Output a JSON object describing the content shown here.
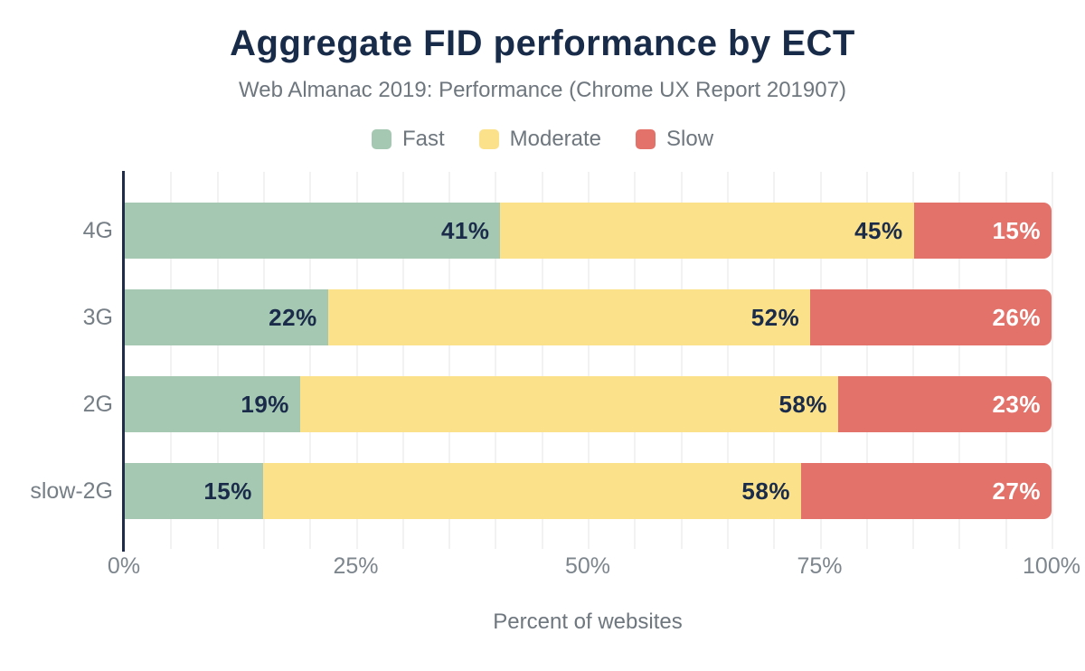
{
  "title": "Aggregate FID performance by ECT",
  "subtitle": "Web Almanac 2019: Performance (Chrome UX Report 201907)",
  "chart_data": {
    "type": "bar",
    "orientation": "horizontal",
    "stacked": true,
    "title": "Aggregate FID performance by ECT",
    "subtitle": "Web Almanac 2019: Performance (Chrome UX Report 201907)",
    "categories": [
      "4G",
      "3G",
      "2G",
      "slow-2G"
    ],
    "series": [
      {
        "name": "Fast",
        "color": "#a4c8b2",
        "label_color": "#1b2b4a",
        "values": [
          41,
          22,
          19,
          15
        ]
      },
      {
        "name": "Moderate",
        "color": "#fbe18a",
        "label_color": "#1b2b4a",
        "values": [
          45,
          52,
          58,
          58
        ]
      },
      {
        "name": "Slow",
        "color": "#e3726b",
        "label_color": "#ffffff",
        "values": [
          15,
          26,
          23,
          27
        ]
      }
    ],
    "value_unit": "%",
    "xlabel": "Percent of websites",
    "x_ticks": [
      0,
      25,
      50,
      75,
      100
    ],
    "x_tick_labels": [
      "0%",
      "25%",
      "50%",
      "75%",
      "100%"
    ],
    "xlim": [
      0,
      100
    ],
    "grid": {
      "vertical": true,
      "minor_step_percent": 5,
      "color": "#f2f2f2"
    },
    "legend_position": "top"
  },
  "colors": {
    "background": "#ffffff",
    "title_text": "#182b49",
    "subtitle_text": "#6e767e",
    "axis_line": "#1e2b49",
    "tick_text": "#7d858d",
    "category_text": "#767e86"
  }
}
